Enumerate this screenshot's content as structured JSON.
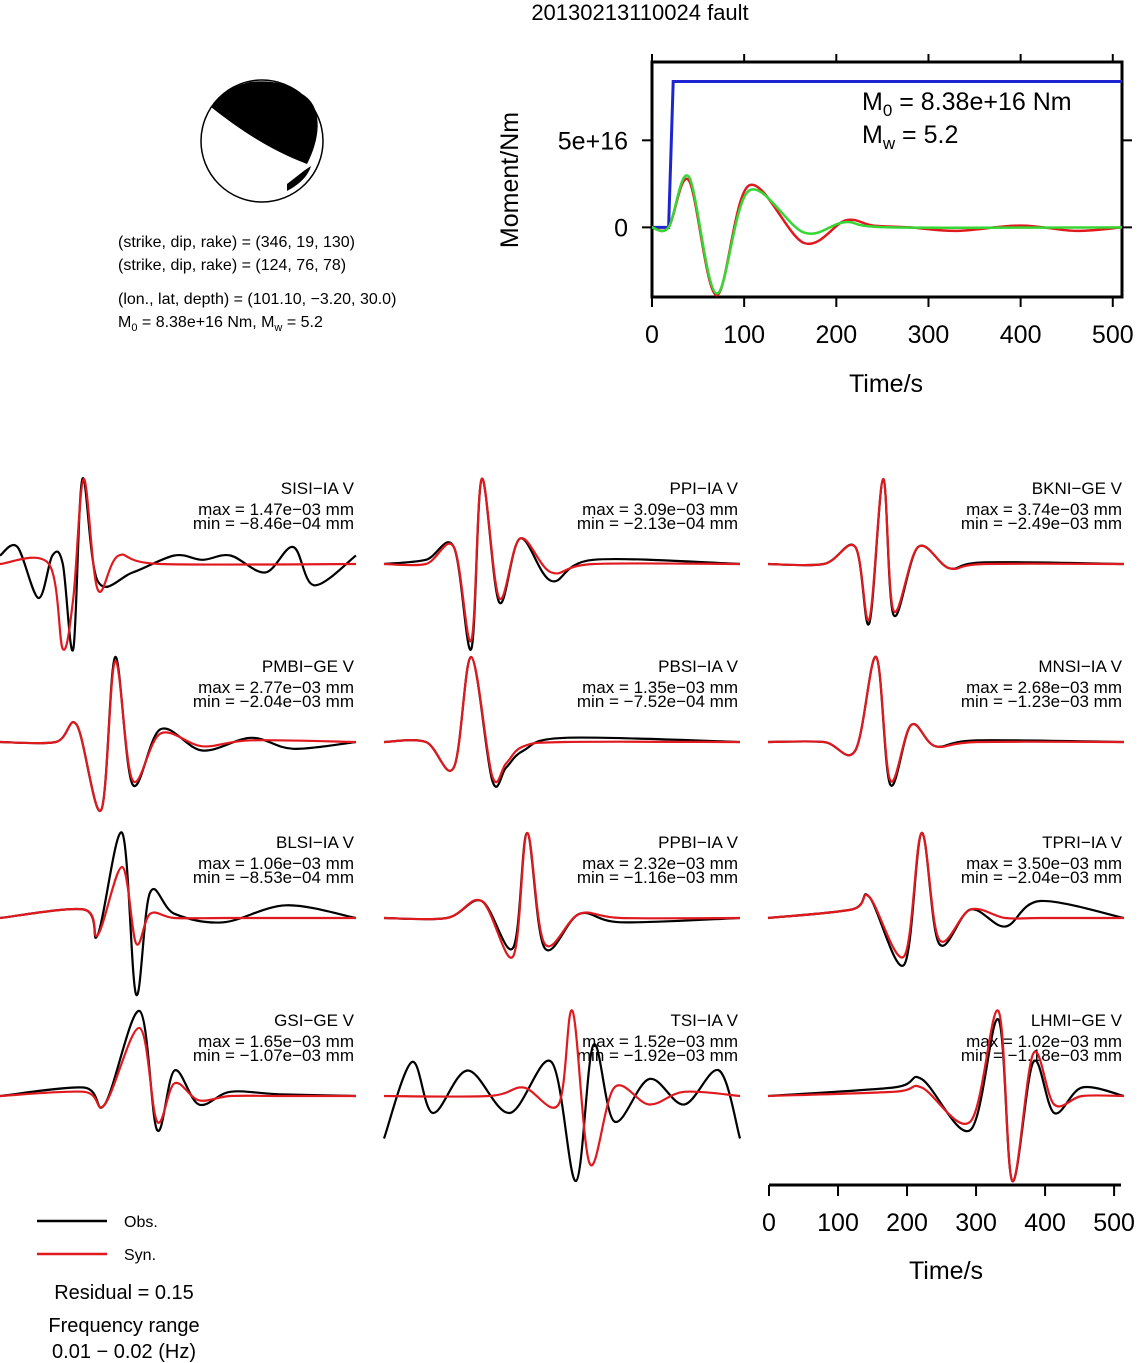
{
  "title": "20130213110024 fault",
  "mechanism": {
    "line1": "(strike, dip, rake) = (346, 19, 130)",
    "line2": "(strike, dip, rake) = (124, 76, 78)",
    "line3": "(lon., lat, depth) = (101.10, −3.20, 30.0)",
    "line4_m0": "8.38e+16 Nm",
    "line4_mw": "5.2",
    "plane1": {
      "strike": 346,
      "dip": 19,
      "rake": 130
    },
    "plane2": {
      "strike": 124,
      "dip": 76,
      "rake": 78
    },
    "location": {
      "lon": 101.1,
      "lat": -3.2,
      "depth": 30.0
    }
  },
  "stf": {
    "ylabel": "Moment/Nm",
    "xlabel": "Time/s",
    "m0_value": "8.38e+16 Nm",
    "mw_value": "5.2",
    "yticks": [
      {
        "v": 0,
        "label": "0"
      },
      {
        "v": 5e+16,
        "label": "5e+16"
      }
    ],
    "xticks": [
      0,
      100,
      200,
      300,
      400,
      500
    ]
  },
  "traces_axis": {
    "xlabel": "Time/s",
    "xticks": [
      0,
      100,
      200,
      300,
      400,
      500
    ]
  },
  "legend": {
    "obs_label": "Obs.",
    "syn_label": "Syn.",
    "obs_color": "#000000",
    "syn_color": "#e0191f"
  },
  "residual_text": "Residual = 0.15",
  "freq_line1": "Frequency range",
  "freq_line2": "0.01 − 0.02 (Hz)",
  "chart_data": [
    {
      "type": "line",
      "title": "",
      "xlabel": "Time/s",
      "ylabel": "Moment/Nm",
      "xlim": [
        0,
        510
      ],
      "ylim": [
        -4e+16,
        9.5e+16
      ],
      "series": [
        {
          "color": "#1f24d1",
          "x": [
            0,
            18,
            23,
            510
          ],
          "y": [
            0,
            0,
            8.38e+16,
            8.38e+16
          ]
        },
        {
          "color": "#e0191f",
          "x": [
            0,
            18,
            40,
            70,
            105,
            165,
            210,
            240,
            280,
            330,
            400,
            460,
            510
          ],
          "y": [
            0,
            0,
            2.7e+16,
            -3.9e+16,
            2.4e+16,
            -9000000000000000.0,
            4000000000000000.0,
            1000000000000000.0,
            0,
            -2000000000000000.0,
            1000000000000000.0,
            -2000000000000000.0,
            0
          ]
        },
        {
          "color": "#35d735",
          "x": [
            0,
            18,
            40,
            70,
            105,
            165,
            210,
            260,
            510
          ],
          "y": [
            0,
            0,
            2.9e+16,
            -3.8e+16,
            2.1e+16,
            -3000000000000000.0,
            3000000000000000.0,
            0,
            0
          ]
        }
      ]
    },
    {
      "type": "line",
      "title": "",
      "xlabel": "Time/s",
      "ylabel": "",
      "xlim": [
        0,
        510
      ],
      "series": [
        {
          "name": "Obs.",
          "color": "#000000"
        },
        {
          "name": "Syn.",
          "color": "#e0191f"
        }
      ],
      "panels": [
        {
          "label": "SISI−IA V",
          "max": "1.47e−03 mm",
          "min": "−8.46e−04 mm",
          "obs": {
            "x": [
              0,
              25,
              55,
              75,
              90,
              105,
              118,
              140,
              190,
              250,
              290,
              330,
              380,
              420,
              450,
              510
            ],
            "y": [
              0.1,
              0.2,
              -0.4,
              0.1,
              0.0,
              -1.0,
              1.0,
              -0.2,
              -0.1,
              0.1,
              0.05,
              0.1,
              -0.1,
              0.2,
              -0.25,
              0.1
            ]
          },
          "syn": {
            "x": [
              0,
              70,
              90,
              105,
              120,
              140,
              170,
              230,
              510
            ],
            "y": [
              0,
              0,
              -1.0,
              -0.4,
              1.0,
              -0.3,
              0.1,
              0,
              0
            ]
          }
        },
        {
          "label": "PPI−IA V",
          "max": "3.09e−03 mm",
          "min": "−2.13e−04 mm",
          "obs": {
            "x": [
              0,
              60,
              100,
              125,
              140,
              165,
              195,
              240,
              300,
              510
            ],
            "y": [
              0,
              0.05,
              0.2,
              -1.0,
              1.0,
              -0.45,
              0.3,
              -0.2,
              0.05,
              0
            ]
          },
          "syn": {
            "x": [
              0,
              60,
              100,
              125,
              140,
              165,
              195,
              240,
              300,
              510
            ],
            "y": [
              0,
              0,
              0.2,
              -0.9,
              1.0,
              -0.4,
              0.3,
              -0.1,
              0,
              0
            ]
          }
        },
        {
          "label": "BKNI−GE V",
          "max": "3.74e−03 mm",
          "min": "−2.49e−03 mm",
          "obs": {
            "x": [
              0,
              80,
              125,
              145,
              165,
              180,
              215,
              260,
              310,
              510
            ],
            "y": [
              0,
              0,
              0.2,
              -0.7,
              1.0,
              -0.6,
              0.2,
              -0.05,
              0.02,
              0
            ]
          },
          "syn": {
            "x": [
              0,
              80,
              125,
              145,
              165,
              180,
              215,
              260,
              310,
              510
            ],
            "y": [
              0,
              0,
              0.2,
              -0.65,
              1.0,
              -0.55,
              0.2,
              -0.05,
              0,
              0
            ]
          }
        },
        {
          "label": "PMBI−GE V",
          "max": "2.77e−03 mm",
          "min": "−2.04e−03 mm",
          "obs": {
            "x": [
              0,
              80,
              110,
              145,
              165,
              190,
              230,
              290,
              360,
              420,
              510
            ],
            "y": [
              0,
              0,
              0.2,
              -0.8,
              1.0,
              -0.5,
              0.15,
              -0.1,
              0.05,
              -0.08,
              0
            ]
          },
          "syn": {
            "x": [
              0,
              80,
              110,
              145,
              165,
              190,
              230,
              290,
              360,
              510
            ],
            "y": [
              0,
              0,
              0.2,
              -0.8,
              0.95,
              -0.45,
              0.1,
              -0.05,
              0.02,
              0
            ]
          }
        },
        {
          "label": "PBSI−IA V",
          "max": "1.35e−03 mm",
          "min": "−7.52e−04 mm",
          "obs": {
            "x": [
              0,
              60,
              100,
              125,
              155,
              175,
              200,
              260,
              510
            ],
            "y": [
              0,
              0,
              -0.3,
              1.0,
              -0.45,
              -0.3,
              -0.1,
              0.05,
              0
            ]
          },
          "syn": {
            "x": [
              0,
              60,
              100,
              125,
              155,
              175,
              200,
              260,
              510
            ],
            "y": [
              0,
              0,
              -0.3,
              1.0,
              -0.4,
              -0.25,
              -0.05,
              0,
              0
            ]
          }
        },
        {
          "label": "MNSI−IA V",
          "max": "2.68e−03 mm",
          "min": "−1.23e−03 mm",
          "obs": {
            "x": [
              0,
              80,
              125,
              155,
              175,
              205,
              240,
              300,
              510
            ],
            "y": [
              0,
              0,
              -0.1,
              1.0,
              -0.5,
              0.2,
              -0.05,
              0.02,
              0
            ]
          },
          "syn": {
            "x": [
              0,
              80,
              125,
              155,
              175,
              205,
              240,
              300,
              510
            ],
            "y": [
              0,
              0,
              -0.1,
              1.0,
              -0.45,
              0.2,
              -0.05,
              0,
              0
            ]
          }
        },
        {
          "label": "BLSI−IA V",
          "max": "1.06e−03 mm",
          "min": "−8.53e−04 mm",
          "obs": {
            "x": [
              0,
              120,
              140,
              175,
              195,
              215,
              250,
              320,
              410,
              510
            ],
            "y": [
              0,
              0.1,
              -0.2,
              1.0,
              -0.9,
              0.3,
              0.05,
              -0.05,
              0.15,
              0
            ]
          },
          "syn": {
            "x": [
              0,
              120,
              140,
              175,
              195,
              215,
              250,
              320,
              410,
              510
            ],
            "y": [
              0,
              0.1,
              -0.2,
              0.6,
              -0.3,
              0.05,
              0,
              0,
              0,
              0
            ]
          }
        },
        {
          "label": "PPBI−IA V",
          "max": "2.32e−03 mm",
          "min": "−1.16e−03 mm",
          "obs": {
            "x": [
              0,
              90,
              140,
              185,
              205,
              230,
              280,
              340,
              510
            ],
            "y": [
              0,
              0,
              0.2,
              -0.35,
              1.0,
              -0.35,
              0.05,
              -0.05,
              0
            ]
          },
          "syn": {
            "x": [
              0,
              90,
              140,
              185,
              205,
              230,
              280,
              340,
              510
            ],
            "y": [
              0,
              0,
              0.2,
              -0.45,
              1.0,
              -0.3,
              0.05,
              0,
              0
            ]
          }
        },
        {
          "label": "TPRI−IA V",
          "max": "3.50e−03 mm",
          "min": "−2.04e−03 mm",
          "obs": {
            "x": [
              0,
              120,
              145,
              195,
              220,
              245,
              290,
              340,
              390,
              510
            ],
            "y": [
              0,
              0.1,
              0.25,
              -0.55,
              1.0,
              -0.3,
              0.1,
              -0.1,
              0.2,
              0
            ]
          },
          "syn": {
            "x": [
              0,
              120,
              145,
              195,
              220,
              245,
              290,
              340,
              390,
              510
            ],
            "y": [
              0,
              0.1,
              0.25,
              -0.45,
              1.0,
              -0.25,
              0.1,
              0,
              0,
              0
            ]
          }
        },
        {
          "label": "GSI−GE V",
          "max": "1.65e−03 mm",
          "min": "−1.07e−03 mm",
          "obs": {
            "x": [
              0,
              120,
              150,
              200,
              225,
              250,
              285,
              330,
              400,
              510
            ],
            "y": [
              0,
              0.1,
              -0.1,
              1.0,
              -0.4,
              0.3,
              -0.1,
              0.05,
              0.02,
              0
            ]
          },
          "syn": {
            "x": [
              0,
              120,
              150,
              200,
              225,
              250,
              285,
              330,
              400,
              510
            ],
            "y": [
              0,
              0.05,
              -0.1,
              0.8,
              -0.3,
              0.15,
              -0.05,
              0,
              0,
              0
            ]
          }
        },
        {
          "label": "TSI−IA V",
          "max": "1.52e−03 mm",
          "min": "−1.92e−03 mm",
          "obs": {
            "x": [
              0,
              40,
              70,
              120,
              180,
              240,
              275,
              300,
              330,
              380,
              430,
              480,
              510
            ],
            "y": [
              -0.5,
              0.4,
              -0.2,
              0.3,
              -0.2,
              0.4,
              -1.0,
              0.6,
              -0.3,
              0.2,
              -0.1,
              0.3,
              -0.5
            ]
          },
          "syn": {
            "x": [
              0,
              150,
              200,
              250,
              270,
              295,
              330,
              380,
              430,
              510
            ],
            "y": [
              0,
              0,
              0.1,
              -0.1,
              1.0,
              -0.8,
              0.1,
              -0.1,
              0.05,
              0
            ]
          }
        },
        {
          "label": "LHMI−GE V",
          "max": "1.02e−03 mm",
          "min": "−1.18e−03 mm",
          "obs": {
            "x": [
              0,
              180,
              220,
              290,
              330,
              350,
              380,
              410,
              450,
              510
            ],
            "y": [
              0,
              0.1,
              0.2,
              -0.4,
              0.9,
              -1.0,
              0.4,
              -0.2,
              0.1,
              0
            ]
          },
          "syn": {
            "x": [
              0,
              180,
              220,
              290,
              330,
              350,
              380,
              410,
              450,
              510
            ],
            "y": [
              0,
              0.05,
              0.1,
              -0.3,
              1.0,
              -1.0,
              0.5,
              -0.1,
              0,
              0
            ]
          }
        }
      ]
    }
  ]
}
